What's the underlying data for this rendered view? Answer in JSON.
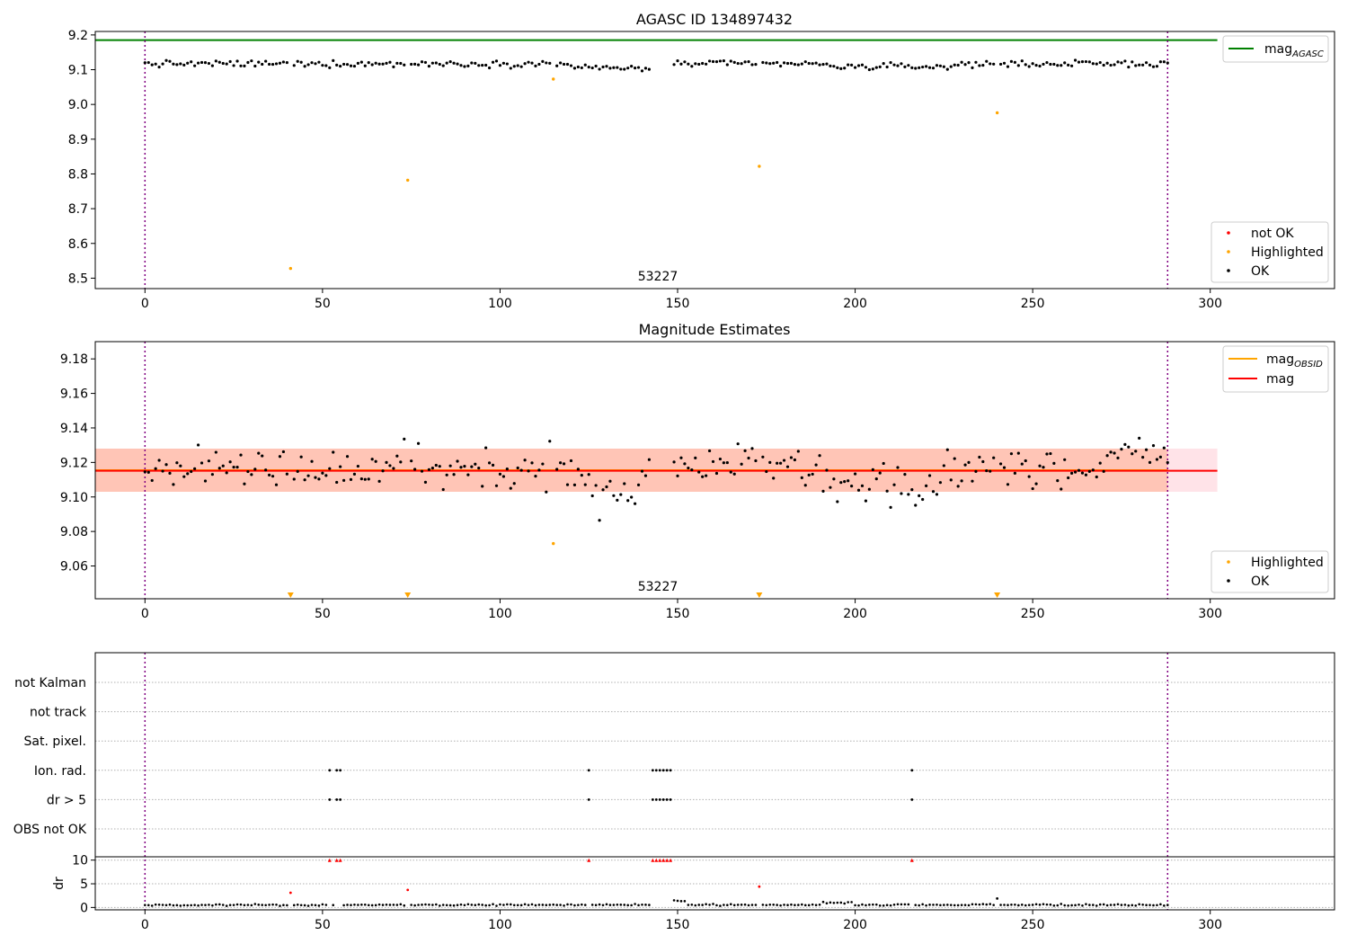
{
  "chart_data": [
    {
      "type": "scatter",
      "title": "AGASC ID 134897432",
      "center_label": "53227",
      "xlim": [
        -14,
        335
      ],
      "ylim": [
        8.47,
        9.21
      ],
      "xticks": [
        0,
        50,
        100,
        150,
        200,
        250,
        300
      ],
      "yticks": [
        8.5,
        8.6,
        8.7,
        8.8,
        8.9,
        9.0,
        9.1,
        9.2
      ],
      "vlines": [
        0,
        288
      ],
      "hlines": [
        {
          "name": "mag",
          "sub": "AGASC",
          "value": 9.185,
          "x_range": [
            -14,
            302
          ],
          "color": "#008000"
        }
      ],
      "legends": [
        {
          "position": "top-right",
          "entries": [
            {
              "label": "mag",
              "sub": "AGASC",
              "kind": "line",
              "color": "#008000"
            }
          ]
        },
        {
          "position": "lower-right",
          "entries": [
            {
              "label": "not OK",
              "kind": "point",
              "color": "#ff0000"
            },
            {
              "label": "Highlighted",
              "kind": "point",
              "color": "#ffa500"
            },
            {
              "label": "OK",
              "kind": "point",
              "color": "#000000"
            }
          ]
        }
      ],
      "series": [
        {
          "name": "Highlighted",
          "color": "#ffa500",
          "points": [
            [
              41,
              8.528
            ],
            [
              74,
              8.782
            ],
            [
              115,
              9.073
            ],
            [
              173,
              8.822
            ],
            [
              240,
              8.976
            ]
          ]
        }
      ]
    },
    {
      "type": "scatter",
      "title": "Magnitude Estimates",
      "center_label": "53227",
      "xlim": [
        -14,
        335
      ],
      "ylim": [
        9.041,
        9.19
      ],
      "xticks": [
        0,
        50,
        100,
        150,
        200,
        250,
        300
      ],
      "yticks": [
        9.06,
        9.08,
        9.1,
        9.12,
        9.14,
        9.16,
        9.18
      ],
      "vlines": [
        0,
        288
      ],
      "bands": [
        {
          "y_range": [
            9.103,
            9.128
          ],
          "x_range": [
            -14,
            302
          ],
          "color": "#ffc0cb"
        },
        {
          "y_range": [
            9.103,
            9.128
          ],
          "x_range": [
            -14,
            288
          ],
          "color": "#ffa07a"
        }
      ],
      "hlines": [
        {
          "name": "mag",
          "sub": "OBSID",
          "value": 9.1155,
          "x_range": [
            -14,
            288
          ],
          "color": "#ffa500"
        },
        {
          "name": "mag",
          "value": 9.1152,
          "x_range": [
            -14,
            302
          ],
          "color": "#ff0000"
        }
      ],
      "offscale_markers": [
        41,
        74,
        173,
        240
      ],
      "legends": [
        {
          "position": "top-right",
          "entries": [
            {
              "label": "mag",
              "sub": "OBSID",
              "kind": "line",
              "color": "#ffa500"
            },
            {
              "label": "mag",
              "kind": "line",
              "color": "#ff0000"
            }
          ]
        },
        {
          "position": "lower-right",
          "entries": [
            {
              "label": "Highlighted",
              "kind": "point",
              "color": "#ffa500"
            },
            {
              "label": "OK",
              "kind": "point",
              "color": "#000000"
            }
          ]
        }
      ],
      "series": [
        {
          "name": "Highlighted",
          "color": "#ffa500",
          "points": [
            [
              115,
              9.073
            ]
          ]
        }
      ]
    },
    {
      "type": "scatter",
      "xlim": [
        -14,
        335
      ],
      "xticks": [
        0,
        50,
        100,
        150,
        200,
        250,
        300
      ],
      "vlines": [
        0,
        288
      ],
      "flag_rows": [
        "not Kalman",
        "not track",
        "Sat. pixel.",
        "Ion. rad.",
        "dr > 5",
        "OBS not OK"
      ],
      "flags": [
        {
          "row": "Ion. rad.",
          "x": [
            52,
            54,
            55,
            125,
            143,
            144,
            145,
            146,
            147,
            148,
            216
          ]
        },
        {
          "row": "dr > 5",
          "x": [
            52,
            54,
            55,
            125,
            143,
            144,
            145,
            146,
            147,
            148,
            216
          ]
        }
      ],
      "dr": {
        "ylabel": "dr",
        "ylim": [
          -0.5,
          10.7
        ],
        "yticks": [
          0,
          5,
          10
        ],
        "clip_value": 10,
        "outliers": [
          [
            41,
            3.1
          ],
          [
            74,
            3.7
          ],
          [
            173,
            4.4
          ],
          [
            240,
            1.9
          ]
        ]
      }
    }
  ]
}
